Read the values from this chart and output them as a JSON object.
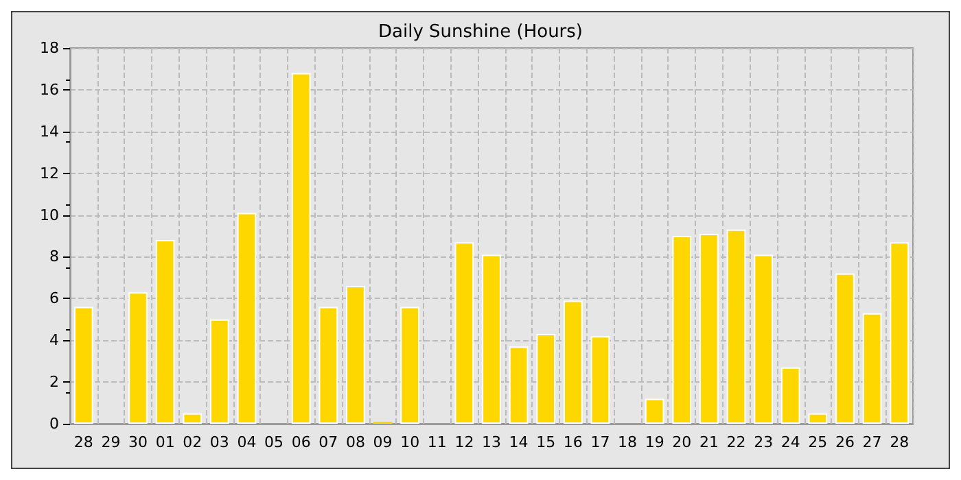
{
  "chart_data": {
    "type": "bar",
    "title": "Daily Sunshine (Hours)",
    "categories": [
      "28",
      "29",
      "30",
      "01",
      "02",
      "03",
      "04",
      "05",
      "06",
      "07",
      "08",
      "09",
      "10",
      "11",
      "12",
      "13",
      "14",
      "15",
      "16",
      "17",
      "18",
      "19",
      "20",
      "21",
      "22",
      "23",
      "24",
      "25",
      "26",
      "27",
      "28"
    ],
    "values": [
      5.6,
      0,
      6.3,
      8.8,
      0.5,
      5.0,
      10.1,
      0,
      16.8,
      5.6,
      6.6,
      0.1,
      5.6,
      0,
      8.7,
      8.1,
      3.7,
      4.3,
      5.9,
      4.2,
      0,
      1.2,
      9.0,
      9.1,
      9.3,
      8.1,
      2.7,
      0.5,
      7.2,
      5.3,
      8.7
    ],
    "color": "#ffd700",
    "ylim": [
      0,
      18
    ],
    "yticks": [
      0,
      2,
      4,
      6,
      8,
      10,
      12,
      14,
      16,
      18
    ],
    "grid": true
  }
}
